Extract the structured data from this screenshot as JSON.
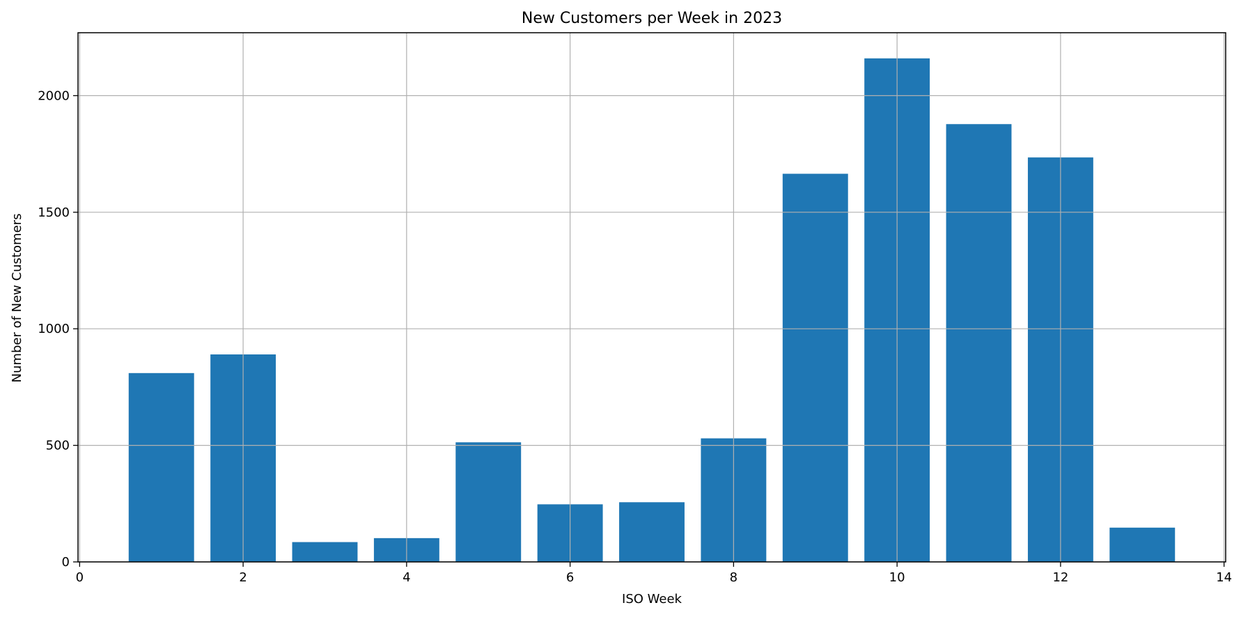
{
  "chart_data": {
    "type": "bar",
    "title": "New Customers per Week in 2023",
    "xlabel": "ISO Week",
    "ylabel": "Number of New Customers",
    "x": [
      1,
      2,
      3,
      4,
      5,
      6,
      7,
      8,
      9,
      10,
      11,
      12,
      13
    ],
    "values": [
      810,
      890,
      85,
      102,
      513,
      247,
      256,
      530,
      1665,
      2160,
      1878,
      1735,
      147
    ],
    "xlim": [
      -0.02,
      14.02
    ],
    "ylim": [
      0,
      2270
    ],
    "xticks": [
      0,
      2,
      4,
      6,
      8,
      10,
      12,
      14
    ],
    "yticks": [
      0,
      500,
      1000,
      1500,
      2000
    ],
    "grid": true,
    "color": "#1f77b4"
  }
}
